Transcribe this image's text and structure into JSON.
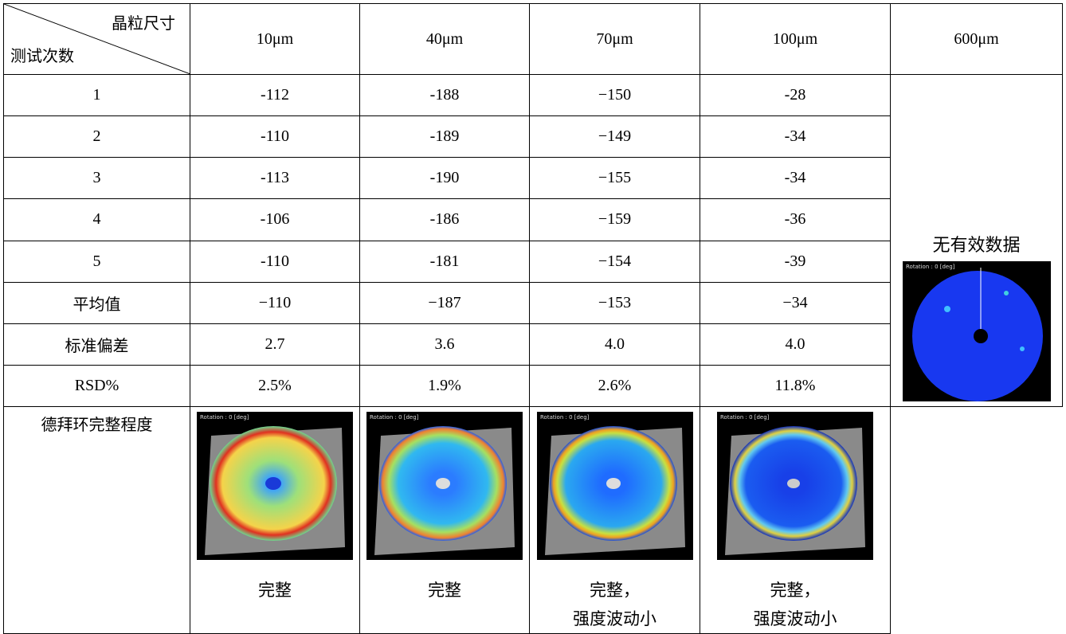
{
  "header": {
    "corner_top": "晶粒尺寸",
    "corner_bottom": "测试次数",
    "columns": [
      "10μm",
      "40μm",
      "70μm",
      "100μm",
      "600μm"
    ]
  },
  "rows": [
    [
      "1",
      "-112",
      "-188",
      "−150",
      "-28"
    ],
    [
      "2",
      "-110",
      "-189",
      "−149",
      "-34"
    ],
    [
      "3",
      "-113",
      "-190",
      "−155",
      "-34"
    ],
    [
      "4",
      "-106",
      "-186",
      "−159",
      "-36"
    ],
    [
      "5",
      "-110",
      "-181",
      "−154",
      "-39"
    ],
    [
      "平均值",
      "−110",
      "−187",
      "−153",
      "−34"
    ],
    [
      "标准偏差",
      "2.7",
      "3.6",
      "4.0",
      "4.0"
    ],
    [
      "RSD%",
      "2.5%",
      "1.9%",
      "2.6%",
      "11.8%"
    ]
  ],
  "last_row": {
    "label": "德拜环完整程度",
    "notes": [
      [
        "完整"
      ],
      [
        "完整"
      ],
      [
        "完整，",
        "强度波动小"
      ],
      [
        "完整，",
        "强度波动小"
      ]
    ]
  },
  "no_data": "无有效数据",
  "images": [
    {
      "caption": "Rotation : 0 [deg]"
    },
    {
      "caption": "Rotation : 0 [deg]"
    },
    {
      "caption": "Rotation : 0 [deg]"
    },
    {
      "caption": "Rotation : 0 [deg]"
    },
    {
      "caption": "Rotation : 0 [deg]"
    }
  ]
}
